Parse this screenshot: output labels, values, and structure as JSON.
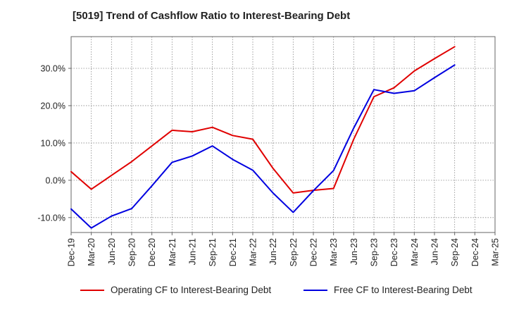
{
  "title": "[5019]  Trend of Cashflow Ratio to Interest-Bearing Debt",
  "chart_data": {
    "type": "line",
    "title": "[5019]  Trend of Cashflow Ratio to Interest-Bearing Debt",
    "xlabel": "",
    "ylabel": "",
    "categories": [
      "Dec-19",
      "Mar-20",
      "Jun-20",
      "Sep-20",
      "Dec-20",
      "Mar-21",
      "Jun-21",
      "Sep-21",
      "Dec-21",
      "Mar-22",
      "Jun-22",
      "Sep-22",
      "Dec-22",
      "Mar-23",
      "Jun-23",
      "Sep-23",
      "Dec-23",
      "Mar-24",
      "Jun-24",
      "Sep-24",
      "Dec-24",
      "Mar-25"
    ],
    "ylim": [
      -14,
      38.5
    ],
    "yticks": [
      -10,
      0,
      10,
      20,
      30
    ],
    "ytick_labels": [
      "-10.0%",
      "0.0%",
      "10.0%",
      "20.0%",
      "30.0%"
    ],
    "grid": true,
    "legend_position": "bottom",
    "series": [
      {
        "name": "Operating CF to Interest-Bearing Debt",
        "color": "#e00000",
        "values": [
          2.3,
          -2.4,
          1.3,
          5.0,
          9.2,
          13.4,
          13.0,
          14.2,
          12.0,
          11.0,
          3.2,
          -3.4,
          -2.7,
          -2.2,
          11.0,
          22.4,
          24.8,
          29.3,
          32.6,
          35.8,
          null,
          null
        ]
      },
      {
        "name": "Free CF to Interest-Bearing Debt",
        "color": "#0000e0",
        "values": [
          -7.7,
          -12.8,
          -9.6,
          -7.6,
          -1.5,
          4.8,
          6.5,
          9.2,
          5.6,
          2.7,
          -3.4,
          -8.6,
          -2.8,
          2.6,
          14.0,
          24.3,
          23.3,
          24.0,
          27.5,
          30.9,
          null,
          null
        ]
      }
    ]
  }
}
